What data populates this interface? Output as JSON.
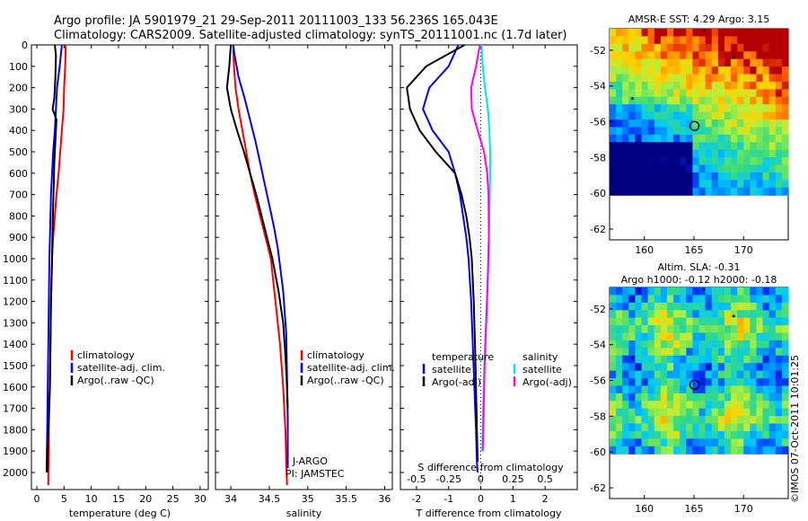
{
  "header": {
    "line1": "Argo profile: JA 5901979_21 29-Sep-2011 20111003_133 56.236S 165.043E",
    "line2": "Climatology: CARS2009. Satellite-adjusted climatology: synTS_20111001.nc (1.7d later)"
  },
  "colors": {
    "climatology": "#ff0000",
    "satellite": "#0000ff",
    "argo": "#000000",
    "sat_salinity": "#00e5ee",
    "argo_salinity": "#ff00ff"
  },
  "chart_data": [
    {
      "type": "line",
      "name": "temperature-profile",
      "xlabel": "temperature (deg C)",
      "ylabel": "",
      "xlim": [
        -1,
        31.5
      ],
      "ylim": [
        2080,
        0
      ],
      "xticks": [
        0,
        5,
        10,
        15,
        20,
        25,
        30
      ],
      "yticks": [
        0,
        100,
        200,
        300,
        400,
        500,
        600,
        700,
        800,
        900,
        1000,
        1100,
        1200,
        1300,
        1400,
        1500,
        1600,
        1700,
        1800,
        1900,
        2000
      ],
      "legend": [
        "climatology",
        "satellite-adj. clim.",
        "Argo(..raw -QC)"
      ],
      "series": [
        {
          "name": "climatology",
          "color": "#ff0000",
          "x": [
            5.3,
            5.2,
            5.0,
            4.9,
            4.6,
            4.3,
            4.0,
            3.6,
            3.3,
            3.0,
            2.8,
            2.6,
            2.5,
            2.4,
            2.3,
            2.2,
            2.2,
            2.1,
            2.1
          ],
          "y": [
            0,
            100,
            200,
            300,
            400,
            500,
            600,
            700,
            800,
            900,
            1000,
            1200,
            1400,
            1600,
            1700,
            1800,
            1900,
            2000,
            2060
          ]
        },
        {
          "name": "satellite-adj. clim.",
          "color": "#0000ff",
          "x": [
            4.6,
            4.2,
            3.7,
            3.5,
            3.3,
            3.0,
            2.8,
            2.6,
            2.5,
            2.4,
            2.3,
            2.2,
            2.1,
            2.0,
            1.9,
            1.8,
            1.8
          ],
          "y": [
            0,
            100,
            200,
            300,
            400,
            500,
            600,
            700,
            800,
            900,
            1000,
            1200,
            1400,
            1600,
            1800,
            1950,
            2000
          ]
        },
        {
          "name": "Argo(..raw -QC)",
          "color": "#000000",
          "x": [
            3.3,
            3.5,
            3.4,
            3.2,
            2.9,
            3.6,
            3.4,
            3.2,
            3.1,
            3.0,
            2.9,
            2.8,
            2.6,
            2.5,
            2.4,
            2.2,
            2.1,
            2.0,
            1.9
          ],
          "y": [
            0,
            50,
            150,
            250,
            300,
            350,
            450,
            550,
            650,
            750,
            850,
            1000,
            1200,
            1400,
            1600,
            1700,
            1800,
            1900,
            2000
          ]
        }
      ]
    },
    {
      "type": "line",
      "name": "salinity-profile",
      "xlabel": "salinity",
      "xlim": [
        33.8,
        36.1
      ],
      "ylim": [
        2080,
        0
      ],
      "xticks": [
        34,
        34.5,
        35,
        35.5,
        36
      ],
      "legend": [
        "climatology",
        "satellite-adj. clim.",
        "Argo(..raw -QC)"
      ],
      "annotation": [
        "J-ARGO",
        "PI: JAMSTEC"
      ],
      "series": [
        {
          "name": "climatology",
          "color": "#ff0000",
          "x": [
            34.03,
            34.04,
            34.06,
            34.1,
            34.15,
            34.2,
            34.25,
            34.31,
            34.38,
            34.45,
            34.52,
            34.58,
            34.64,
            34.68,
            34.71,
            34.72,
            34.73
          ],
          "y": [
            0,
            100,
            200,
            300,
            400,
            500,
            600,
            700,
            800,
            900,
            1000,
            1200,
            1400,
            1600,
            1800,
            1950,
            2060
          ]
        },
        {
          "name": "satellite-adj. clim.",
          "color": "#0000ff",
          "x": [
            34.03,
            34.05,
            34.1,
            34.18,
            34.25,
            34.32,
            34.38,
            34.44,
            34.5,
            34.56,
            34.61,
            34.68,
            34.72,
            34.73,
            34.74,
            34.74,
            34.74
          ],
          "y": [
            0,
            50,
            150,
            250,
            350,
            450,
            550,
            650,
            750,
            850,
            950,
            1150,
            1350,
            1550,
            1750,
            1900,
            1980
          ]
        },
        {
          "name": "Argo(..raw -QC)",
          "color": "#000000",
          "x": [
            34.0,
            33.98,
            33.95,
            34.0,
            34.08,
            34.17,
            34.25,
            34.33,
            34.4,
            34.47,
            34.54,
            34.62,
            34.68,
            34.71,
            34.73,
            34.74
          ],
          "y": [
            0,
            100,
            200,
            300,
            400,
            500,
            600,
            700,
            800,
            900,
            1000,
            1150,
            1300,
            1450,
            1600,
            1700
          ]
        }
      ]
    },
    {
      "type": "line",
      "name": "difference-profile",
      "xlabel": "T difference from climatology",
      "xlabel_top": "S difference from climatology",
      "xlim": [
        -2.5,
        3
      ],
      "ylim": [
        2080,
        0
      ],
      "xticks": [
        -2,
        -1,
        0,
        1,
        2
      ],
      "xticks_top": [
        "-0.5",
        "-0.25",
        "0",
        "0.25",
        "0.5"
      ],
      "legend": [
        "temperature",
        "satellite",
        "Argo(-adj)",
        "salinity",
        "satellite",
        "Argo(-adj)"
      ],
      "series": [
        {
          "name": "temperature satellite",
          "color": "#0000ff",
          "x": [
            -0.7,
            -1.0,
            -1.6,
            -1.8,
            -1.5,
            -1.0,
            -0.8,
            -0.65,
            -0.55,
            -0.45,
            -0.38,
            -0.3,
            -0.25,
            -0.2,
            -0.15,
            -0.12,
            -0.1
          ],
          "y": [
            0,
            100,
            200,
            300,
            400,
            500,
            600,
            700,
            800,
            900,
            1000,
            1200,
            1400,
            1600,
            1800,
            1950,
            2000
          ]
        },
        {
          "name": "temperature Argo(-adj)",
          "color": "#000000",
          "x": [
            -0.5,
            -1.7,
            -2.3,
            -2.2,
            -1.9,
            -1.4,
            -0.8,
            -0.6,
            -0.45,
            -0.35,
            -0.28,
            -0.22,
            -0.18,
            -0.15,
            -0.12,
            -0.1
          ],
          "y": [
            0,
            100,
            200,
            300,
            400,
            500,
            600,
            700,
            800,
            900,
            1000,
            1200,
            1400,
            1600,
            1800,
            1950
          ]
        },
        {
          "name": "salinity satellite",
          "color": "#00e5ee",
          "x": [
            0.02,
            0.06,
            0.13,
            0.22,
            0.27,
            0.29,
            0.29,
            0.28,
            0.25,
            0.21,
            0.16,
            0.11,
            0.07,
            0.05
          ],
          "y": [
            0,
            100,
            200,
            300,
            400,
            500,
            600,
            700,
            900,
            1100,
            1300,
            1500,
            1700,
            1900
          ]
        },
        {
          "name": "salinity Argo(-adj)",
          "color": "#ff00ff",
          "x": [
            -0.03,
            -0.15,
            -0.3,
            -0.28,
            -0.1,
            0.1,
            0.2,
            0.24,
            0.25,
            0.22,
            0.17,
            0.12,
            0.09,
            0.06
          ],
          "y": [
            0,
            100,
            200,
            300,
            400,
            500,
            600,
            700,
            900,
            1100,
            1300,
            1500,
            1700,
            1900
          ]
        }
      ]
    },
    {
      "type": "heatmap",
      "name": "sst-map",
      "title": "AMSR-E SST: 4.29  Argo: 3.15",
      "xticks": [
        160,
        165,
        170
      ],
      "yticks": [
        -52,
        -54,
        -56,
        -58,
        -60,
        -62
      ],
      "xlim": [
        156.5,
        174.5
      ],
      "ylim": [
        -62.6,
        -50.8
      ],
      "argo_position": [
        165.043,
        -56.236
      ]
    },
    {
      "type": "heatmap",
      "name": "sla-map",
      "title": "Altim. SLA: -0.31",
      "subtitle": "Argo h1000: -0.12  h2000: -0.18",
      "xticks": [
        160,
        165,
        170
      ],
      "yticks": [
        -52,
        -54,
        -56,
        -58,
        -60,
        -62
      ],
      "xlim": [
        156.5,
        174.5
      ],
      "ylim": [
        -62.6,
        -50.8
      ],
      "argo_position": [
        165.043,
        -56.236
      ]
    }
  ],
  "credit": "©IMOS 07-Oct-2011 10:01:25"
}
